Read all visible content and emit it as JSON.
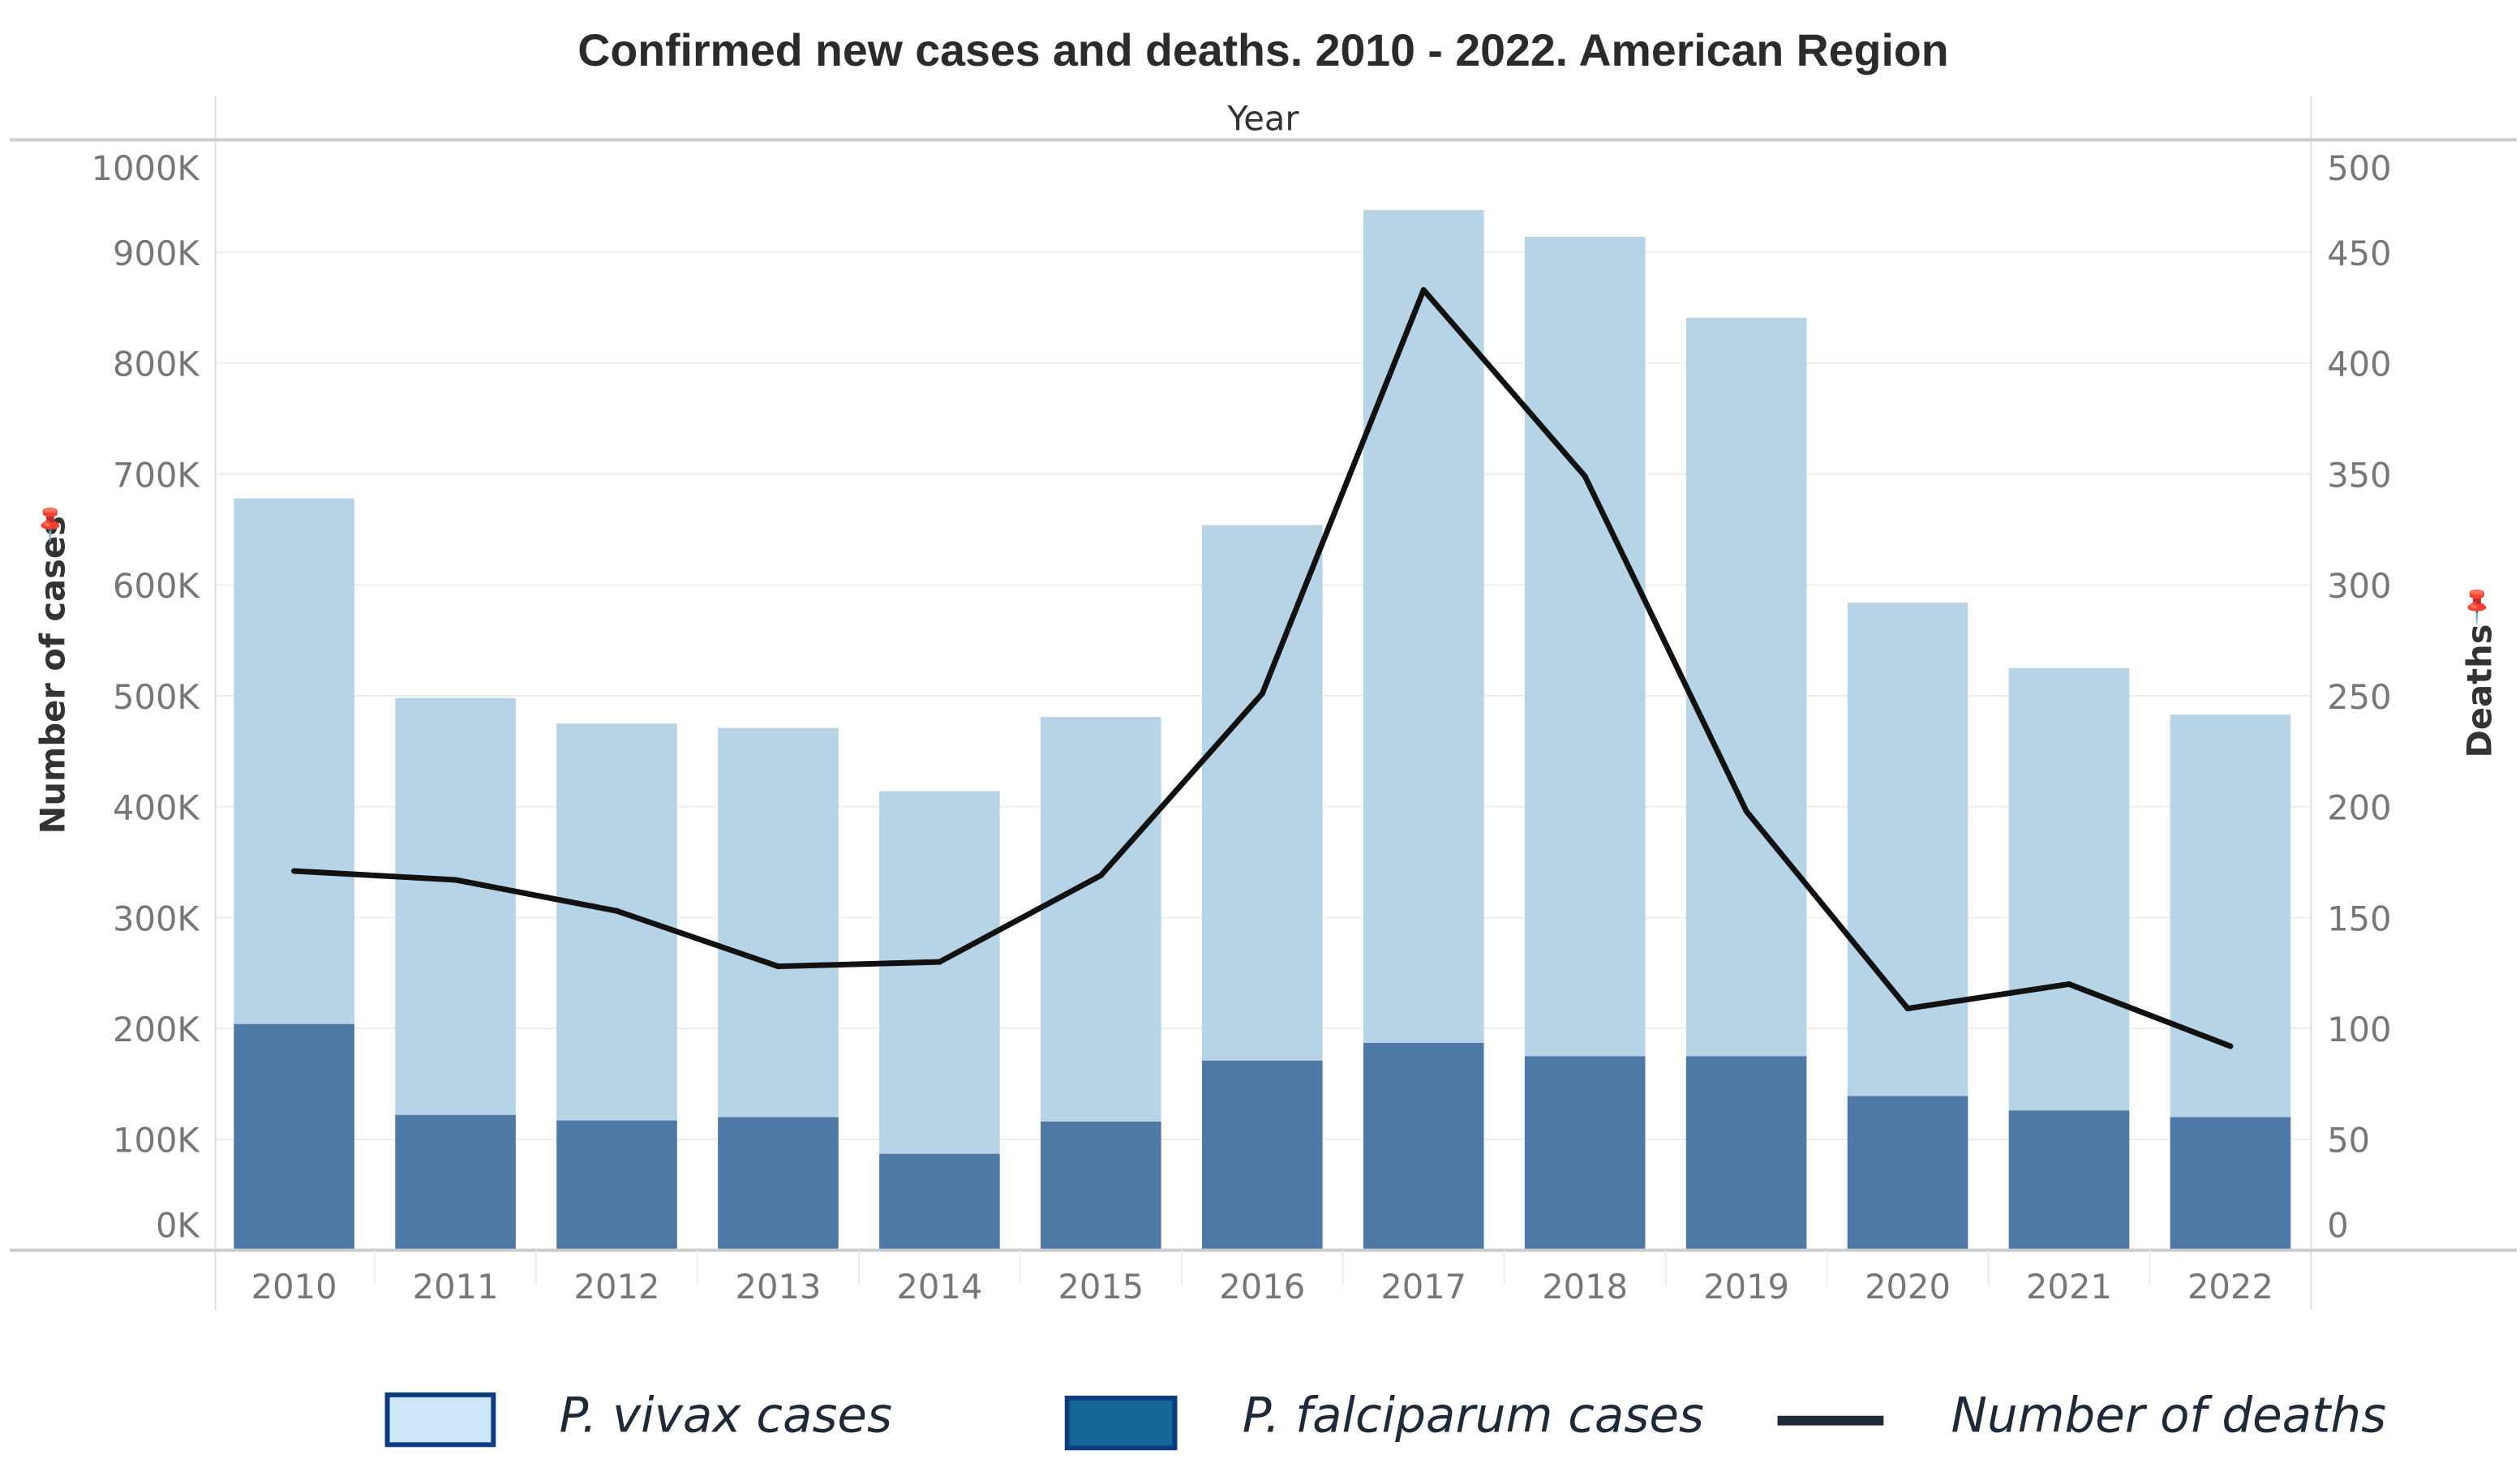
{
  "chart_data": {
    "type": "bar",
    "subtype": "stacked bar with line on secondary axis",
    "title": "Confirmed new cases and deaths. 2010 - 2022.  American Region",
    "xlabel": "Year",
    "ylabel": "Number of cases",
    "y2label": "Deaths",
    "categories": [
      "2010",
      "2011",
      "2012",
      "2013",
      "2014",
      "2015",
      "2016",
      "2017",
      "2018",
      "2019",
      "2020",
      "2021",
      "2022"
    ],
    "ylim": [
      0,
      1000000
    ],
    "y2lim": [
      0,
      500
    ],
    "yticks": [
      "0K",
      "100K",
      "200K",
      "300K",
      "400K",
      "500K",
      "600K",
      "700K",
      "800K",
      "900K",
      "1000K"
    ],
    "y2ticks": [
      "0",
      "50",
      "100",
      "150",
      "200",
      "250",
      "300",
      "350",
      "400",
      "450",
      "500"
    ],
    "grid": true,
    "legend_position": "bottom",
    "series": [
      {
        "name": "P. falciparum cases",
        "type": "bar",
        "axis": "left",
        "color": "#4e78a6",
        "legend_color": "#176698",
        "values": [
          204000,
          122000,
          117000,
          120000,
          87000,
          116000,
          171000,
          187000,
          175000,
          175000,
          139000,
          126000,
          120000
        ]
      },
      {
        "name": "P. vivax cases",
        "type": "bar",
        "axis": "left",
        "color": "#b7d3e6",
        "legend_color": "#cfe8f9",
        "values": [
          474000,
          376000,
          358000,
          351000,
          327000,
          365000,
          483000,
          751000,
          739000,
          666000,
          445000,
          399000,
          363000
        ]
      },
      {
        "name": "Number of deaths",
        "type": "line",
        "axis": "right",
        "color": "#111111",
        "legend_color": "#1f2a38",
        "values": [
          171,
          167,
          153,
          128,
          130,
          169,
          251,
          433,
          349,
          198,
          109,
          120,
          92
        ]
      }
    ]
  }
}
